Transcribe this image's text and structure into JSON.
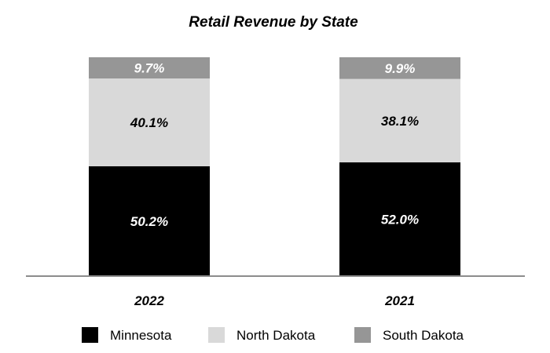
{
  "chart_data": {
    "type": "bar",
    "stacked": true,
    "title": "Retail Revenue by State",
    "categories": [
      "2022",
      "2021"
    ],
    "series": [
      {
        "name": "Minnesota",
        "values": [
          50.2,
          52.0
        ],
        "labels": [
          "50.2%",
          "52.0%"
        ],
        "color": "#000000",
        "label_color": "#ffffff"
      },
      {
        "name": "North Dakota",
        "values": [
          40.1,
          38.1
        ],
        "labels": [
          "40.1%",
          "38.1%"
        ],
        "color": "#d9d9d9",
        "label_color": "#000000"
      },
      {
        "name": "South Dakota",
        "values": [
          9.7,
          9.9
        ],
        "labels": [
          "9.7%",
          "9.9%"
        ],
        "color": "#969696",
        "label_color": "#ffffff"
      }
    ],
    "ylim": [
      0,
      100
    ],
    "grid": false,
    "legend_position": "bottom"
  }
}
